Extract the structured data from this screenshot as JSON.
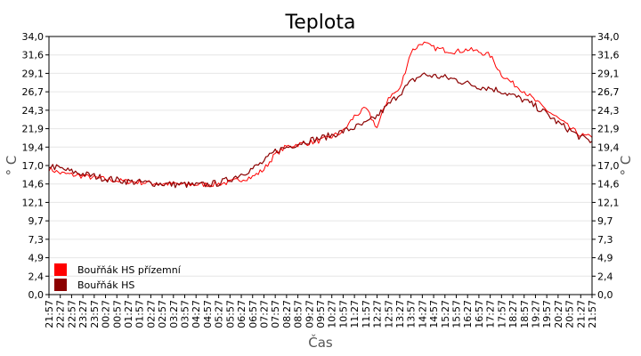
{
  "chart_data": {
    "type": "line",
    "title": "Teplota",
    "xlabel": "Čas",
    "ylabel": "° C",
    "ylim": [
      0,
      34
    ],
    "y_ticks": [
      "0,0",
      "2,4",
      "4,9",
      "7,3",
      "9,7",
      "12,1",
      "14,6",
      "17,0",
      "19,4",
      "21,9",
      "24,3",
      "26,7",
      "29,1",
      "31,6",
      "34,0"
    ],
    "x_ticks": [
      "21:57",
      "22:27",
      "22:57",
      "23:27",
      "23:57",
      "00:27",
      "00:57",
      "01:27",
      "01:57",
      "02:27",
      "02:57",
      "03:27",
      "03:57",
      "04:27",
      "04:57",
      "05:27",
      "05:57",
      "06:27",
      "06:57",
      "07:27",
      "07:57",
      "08:27",
      "08:57",
      "09:27",
      "09:57",
      "10:27",
      "10:57",
      "11:27",
      "11:57",
      "12:27",
      "12:57",
      "13:27",
      "13:57",
      "14:27",
      "14:57",
      "15:27",
      "15:57",
      "16:27",
      "16:57",
      "17:27",
      "17:57",
      "18:27",
      "18:57",
      "19:27",
      "19:57",
      "20:27",
      "20:57",
      "21:27",
      "21:57"
    ],
    "grid": true,
    "legend_position": "bottom-left",
    "series": [
      {
        "name": "Bouřňák HS přízemní",
        "color": "#ff0000",
        "x_index": [
          0,
          1,
          2,
          3,
          4,
          5,
          6,
          7,
          8,
          9,
          10,
          11,
          12,
          13,
          14,
          15,
          16,
          17,
          18,
          19,
          20,
          21,
          22,
          23,
          24,
          25,
          26,
          27,
          28,
          29,
          30,
          31,
          32,
          33,
          34,
          35,
          36,
          37,
          38,
          39,
          40,
          41,
          42,
          43,
          44,
          45,
          46,
          47,
          48
        ],
        "values": [
          16.6,
          16.0,
          15.8,
          15.6,
          15.4,
          15.2,
          15.0,
          14.9,
          14.8,
          14.7,
          14.6,
          14.6,
          14.5,
          14.5,
          14.5,
          14.6,
          14.8,
          15.2,
          15.5,
          16.5,
          18.5,
          19.5,
          19.8,
          20.0,
          20.3,
          20.8,
          21.5,
          23.5,
          24.5,
          22.0,
          26.0,
          27.0,
          32.0,
          33.2,
          32.5,
          32.2,
          32.0,
          32.3,
          32.0,
          31.5,
          29.0,
          27.8,
          26.8,
          25.5,
          24.3,
          23.2,
          22.0,
          21.0,
          20.7
        ]
      },
      {
        "name": "Bouřňák HS",
        "color": "#8b0000",
        "x_index": [
          0,
          1,
          2,
          3,
          4,
          5,
          6,
          7,
          8,
          9,
          10,
          11,
          12,
          13,
          14,
          15,
          16,
          17,
          18,
          19,
          20,
          21,
          22,
          23,
          24,
          25,
          26,
          27,
          28,
          29,
          30,
          31,
          32,
          33,
          34,
          35,
          36,
          37,
          38,
          39,
          40,
          41,
          42,
          43,
          44,
          45,
          46,
          47,
          48
        ],
        "values": [
          17.0,
          16.6,
          16.2,
          15.9,
          15.6,
          15.3,
          15.1,
          14.9,
          14.8,
          14.7,
          14.6,
          14.5,
          14.5,
          14.4,
          14.5,
          14.7,
          15.2,
          15.9,
          16.6,
          17.5,
          18.9,
          19.4,
          19.9,
          20.3,
          20.6,
          21.0,
          21.5,
          22.0,
          22.5,
          23.5,
          25.0,
          26.5,
          28.0,
          29.0,
          28.8,
          28.6,
          28.3,
          27.8,
          27.4,
          27.2,
          26.8,
          26.2,
          25.6,
          24.8,
          23.8,
          22.6,
          21.7,
          20.7,
          20.2
        ]
      }
    ]
  }
}
